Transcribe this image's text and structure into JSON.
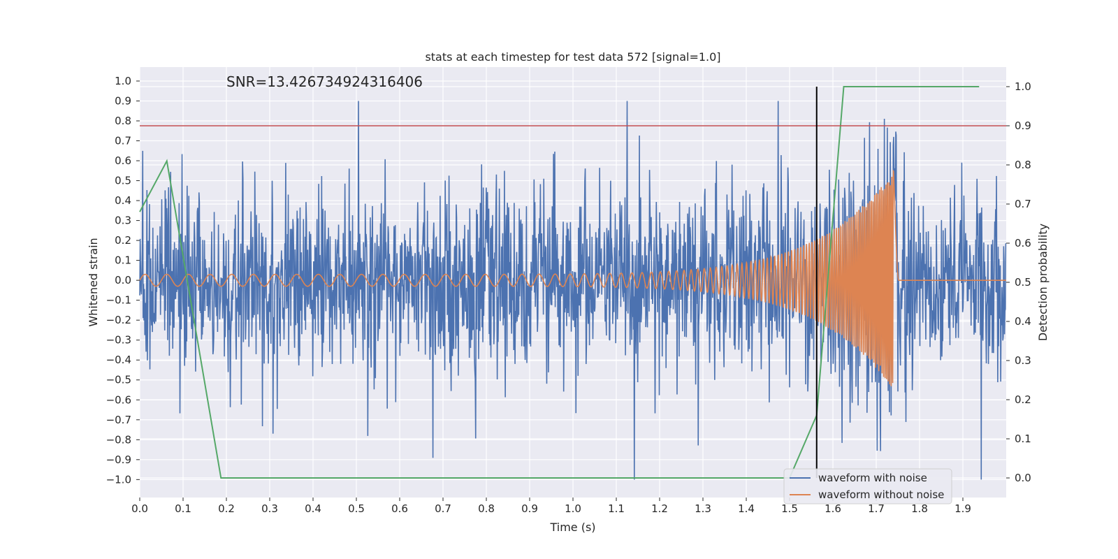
{
  "chart_data": {
    "type": "line",
    "title": "stats at each timestep for test data 572 [signal=1.0]",
    "annotation": "SNR=13.426734924316406",
    "xlabel": "Time (s)",
    "ylabel_left": "Whitened strain",
    "ylabel_right": "Detection probability",
    "xlim": [
      0.0,
      2.0
    ],
    "ylim_left": [
      -1.09,
      1.07
    ],
    "ylim_right": [
      -0.05,
      1.05
    ],
    "x_ticks": [
      "0.0",
      "0.1",
      "0.2",
      "0.3",
      "0.4",
      "0.5",
      "0.6",
      "0.7",
      "0.8",
      "0.9",
      "1.0",
      "1.1",
      "1.2",
      "1.3",
      "1.4",
      "1.5",
      "1.6",
      "1.7",
      "1.8",
      "1.9"
    ],
    "y_left_ticks": [
      "1.0",
      "0.9",
      "0.8",
      "0.7",
      "0.6",
      "0.5",
      "0.4",
      "0.3",
      "0.2",
      "0.1",
      "0.0",
      "−0.1",
      "−0.2",
      "−0.3",
      "−0.4",
      "−0.5",
      "−0.6",
      "−0.7",
      "−0.8",
      "−0.9",
      "−1.0"
    ],
    "y_right_ticks": [
      "1.0",
      "0.9",
      "0.8",
      "0.7",
      "0.6",
      "0.5",
      "0.4",
      "0.3",
      "0.2",
      "0.1",
      "0.0"
    ],
    "grid": true,
    "legend_position": "lower-right",
    "threshold": 0.9,
    "detection_time": 1.5625,
    "series": [
      {
        "name": "waveform with noise",
        "axis": "left",
        "color": "#4c72b0",
        "description_values": "noise-like strain, mostly within -0.6..0.6; peaks 0.89 at 0.56 s, 0.88 at 1.92 s; minimum -1.0 at 1.32 s"
      },
      {
        "name": "waveform without noise",
        "axis": "left",
        "color": "#dd8452",
        "chirp": {
          "x_start": 0.0,
          "x_merger": 1.74,
          "amp_start": 0.03,
          "amp_peak": 0.55,
          "amp_min": -0.6,
          "freq_start_hz": 20,
          "freq_merger_hz": 300
        }
      },
      {
        "name": "detection probability",
        "axis": "right",
        "color": "#55a868",
        "x": [
          0.0,
          0.0625,
          0.1875,
          0.25,
          1.5,
          1.5625,
          1.625,
          1.9375
        ],
        "y": [
          0.68,
          0.81,
          0.0,
          0.0,
          0.0,
          0.16,
          1.0,
          1.0
        ]
      }
    ],
    "colors": {
      "background_plot": "#eaeaf2",
      "grid": "#ffffff",
      "threshold_line": "#c44e52",
      "detection_line": "#000000"
    }
  }
}
